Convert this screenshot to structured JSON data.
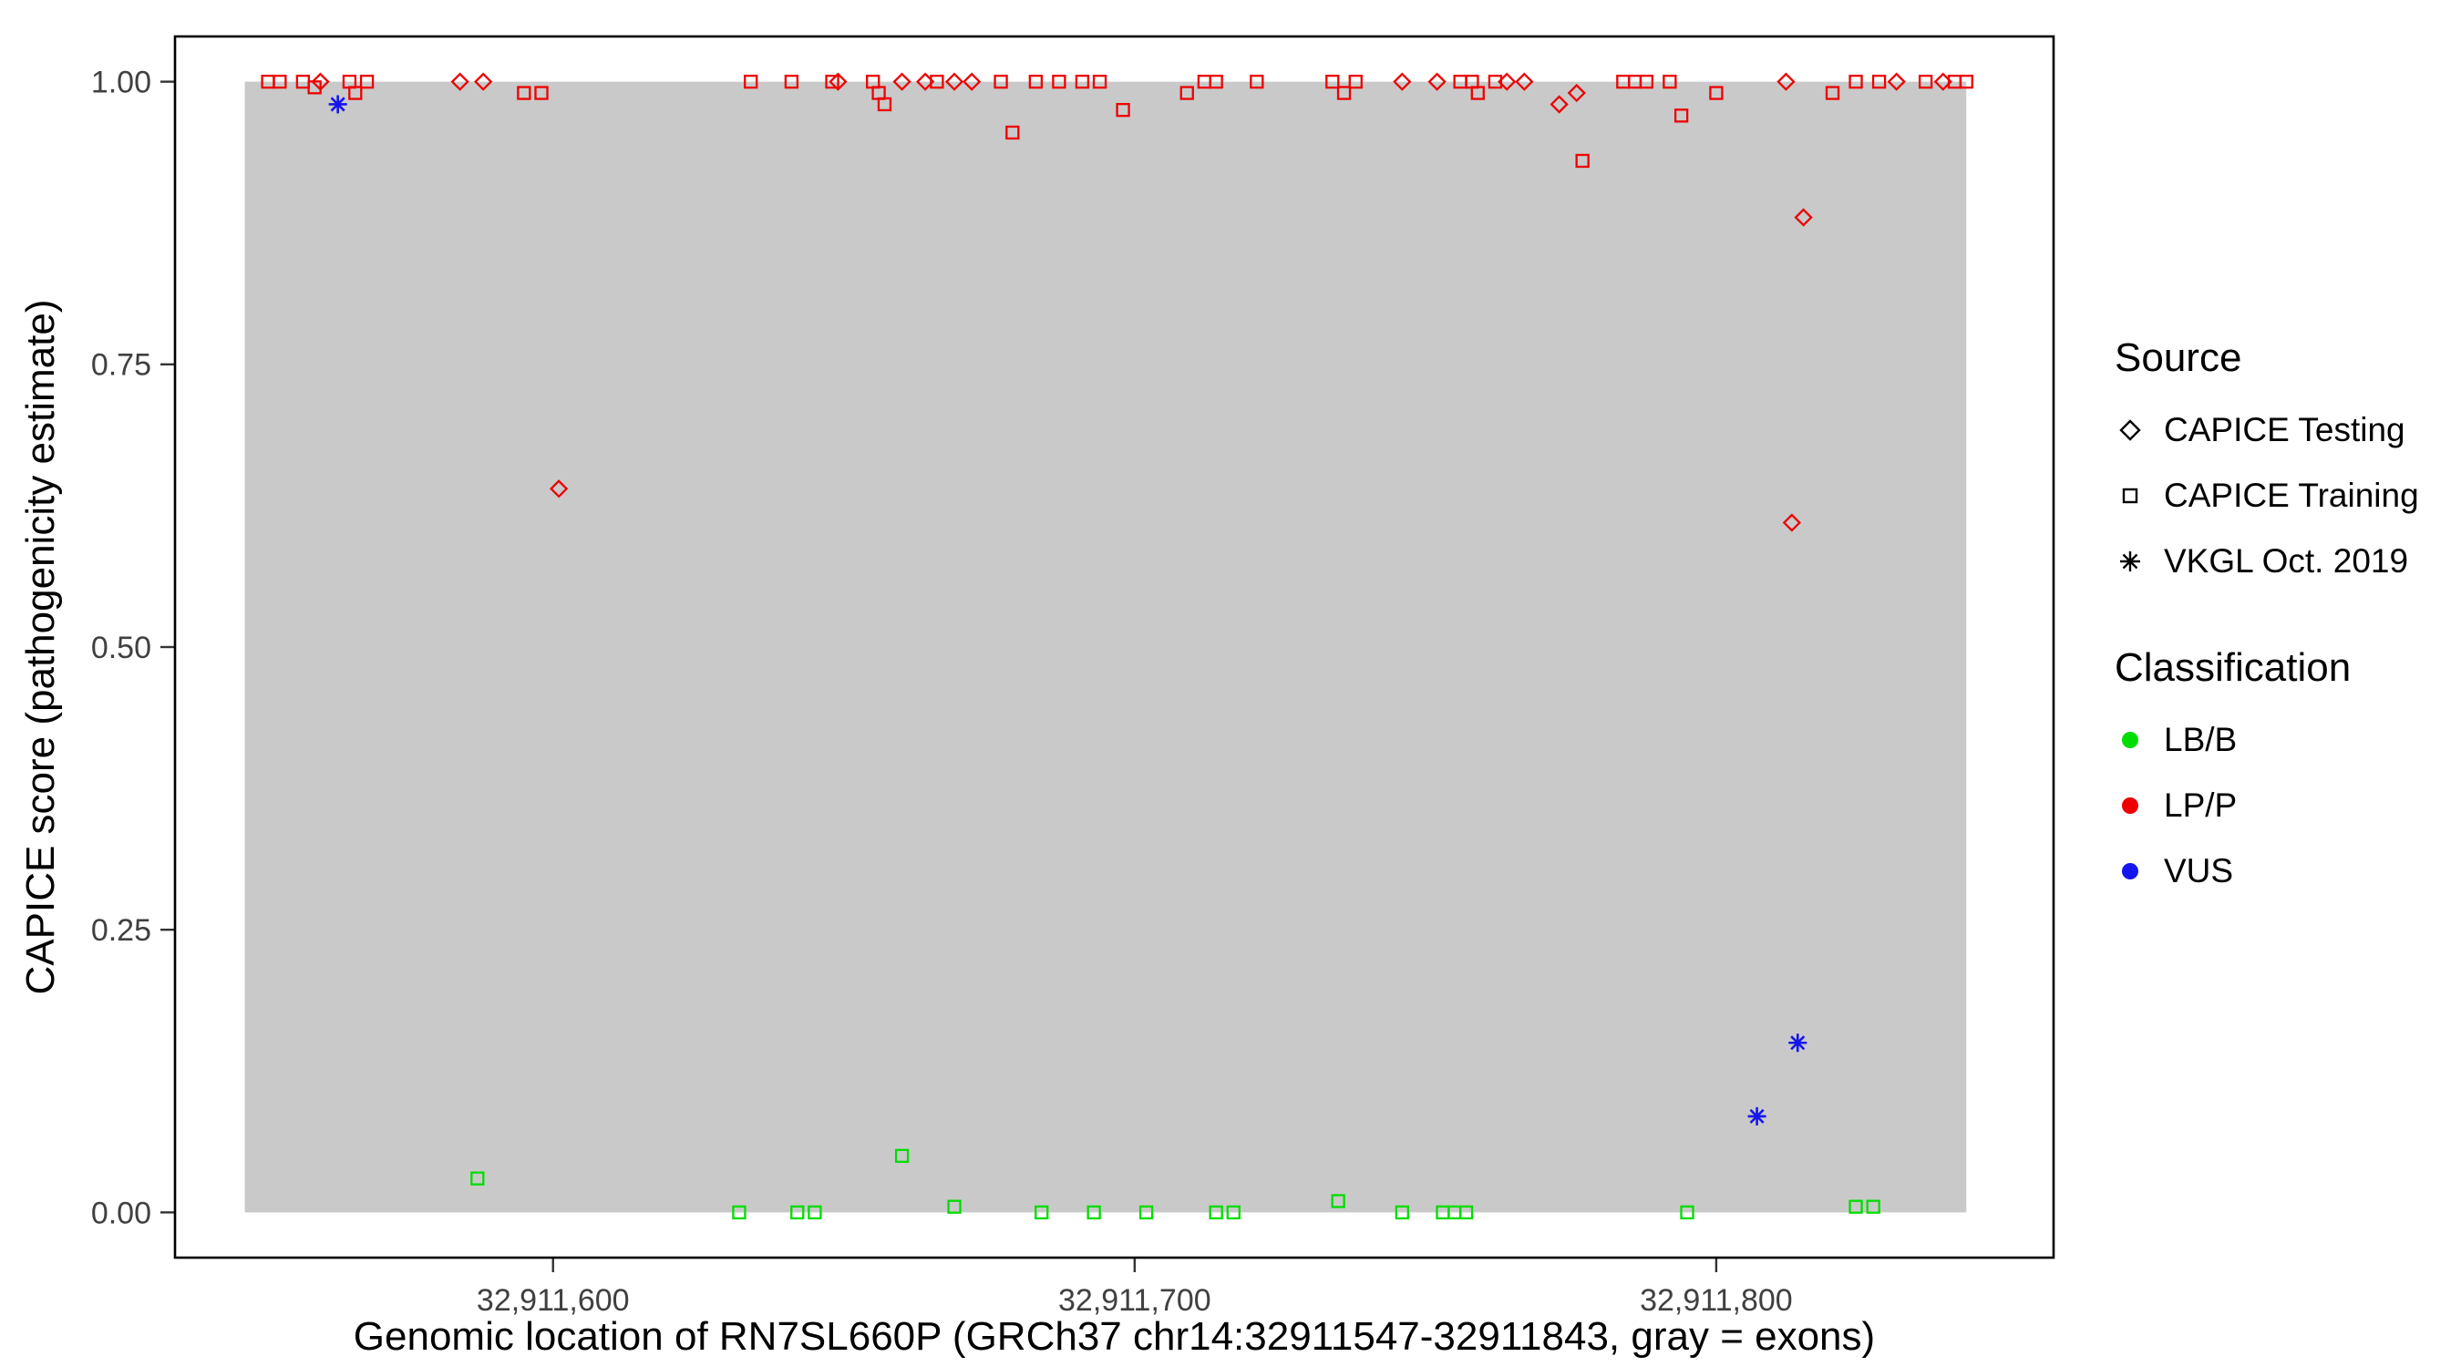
{
  "axes": {
    "x_title": "Genomic location of RN7SL660P (GRCh37 chr14:32911547-32911843, gray = exons)",
    "y_title": "CAPICE score (pathogenicity estimate)"
  },
  "legend": {
    "source": {
      "title": "Source",
      "items": [
        {
          "label": "CAPICE Testing",
          "marker": "diamond"
        },
        {
          "label": "CAPICE Training",
          "marker": "square"
        },
        {
          "label": "VKGL Oct. 2019",
          "marker": "asterisk"
        }
      ]
    },
    "classification": {
      "title": "Classification",
      "items": [
        {
          "label": "LB/B",
          "color": "#00dd00"
        },
        {
          "label": "LP/P",
          "color": "#ee0000"
        },
        {
          "label": "VUS",
          "color": "#1515ee"
        }
      ]
    }
  },
  "chart_data": {
    "type": "scatter",
    "title": "",
    "xlabel": "Genomic location of RN7SL660P (GRCh37 chr14:32911547-32911843, gray = exons)",
    "ylabel": "CAPICE score (pathogenicity estimate)",
    "xlim": [
      32911535,
      32911858
    ],
    "ylim": [
      -0.04,
      1.04
    ],
    "grid": false,
    "legend_position": "right",
    "x_ticks": [
      {
        "value": 32911600,
        "label": "32,911,600"
      },
      {
        "value": 32911700,
        "label": "32,911,700"
      },
      {
        "value": 32911800,
        "label": "32,911,800"
      }
    ],
    "y_ticks": [
      {
        "value": 0.0,
        "label": "0.00"
      },
      {
        "value": 0.25,
        "label": "0.25"
      },
      {
        "value": 0.5,
        "label": "0.50"
      },
      {
        "value": 0.75,
        "label": "0.75"
      },
      {
        "value": 1.0,
        "label": "1.00"
      }
    ],
    "exon_region": {
      "start": 32911547,
      "end": 32911843,
      "color": "#c9c9c9"
    },
    "marker_by_source": {
      "CAPICE Testing": "diamond",
      "CAPICE Training": "square",
      "VKGL Oct. 2019": "asterisk"
    },
    "color_by_class": {
      "LB/B": "#00dd00",
      "LP/P": "#ee0000",
      "VUS": "#1515ee"
    },
    "points": [
      [
        32911551,
        1.0,
        "CAPICE Training",
        "LP/P"
      ],
      [
        32911553,
        1.0,
        "CAPICE Training",
        "LP/P"
      ],
      [
        32911557,
        1.0,
        "CAPICE Training",
        "LP/P"
      ],
      [
        32911559,
        0.995,
        "CAPICE Training",
        "LP/P"
      ],
      [
        32911560,
        1.0,
        "CAPICE Testing",
        "LP/P"
      ],
      [
        32911563,
        0.98,
        "VKGL Oct. 2019",
        "VUS"
      ],
      [
        32911565,
        1.0,
        "CAPICE Training",
        "LP/P"
      ],
      [
        32911566,
        0.99,
        "CAPICE Training",
        "LP/P"
      ],
      [
        32911568,
        1.0,
        "CAPICE Training",
        "LP/P"
      ],
      [
        32911584,
        1.0,
        "CAPICE Testing",
        "LP/P"
      ],
      [
        32911588,
        1.0,
        "CAPICE Testing",
        "LP/P"
      ],
      [
        32911587,
        0.03,
        "CAPICE Training",
        "LB/B"
      ],
      [
        32911595,
        0.99,
        "CAPICE Training",
        "LP/P"
      ],
      [
        32911598,
        0.99,
        "CAPICE Training",
        "LP/P"
      ],
      [
        32911601,
        0.64,
        "CAPICE Testing",
        "LP/P"
      ],
      [
        32911632,
        0.0,
        "CAPICE Training",
        "LB/B"
      ],
      [
        32911634,
        1.0,
        "CAPICE Training",
        "LP/P"
      ],
      [
        32911641,
        1.0,
        "CAPICE Training",
        "LP/P"
      ],
      [
        32911642,
        0.0,
        "CAPICE Training",
        "LB/B"
      ],
      [
        32911645,
        0.0,
        "CAPICE Training",
        "LB/B"
      ],
      [
        32911648,
        1.0,
        "CAPICE Training",
        "LP/P"
      ],
      [
        32911649,
        1.0,
        "CAPICE Testing",
        "LP/P"
      ],
      [
        32911655,
        1.0,
        "CAPICE Training",
        "LP/P"
      ],
      [
        32911656,
        0.99,
        "CAPICE Training",
        "LP/P"
      ],
      [
        32911657,
        0.98,
        "CAPICE Training",
        "LP/P"
      ],
      [
        32911660,
        1.0,
        "CAPICE Testing",
        "LP/P"
      ],
      [
        32911660,
        0.05,
        "CAPICE Training",
        "LB/B"
      ],
      [
        32911664,
        1.0,
        "CAPICE Testing",
        "LP/P"
      ],
      [
        32911666,
        1.0,
        "CAPICE Training",
        "LP/P"
      ],
      [
        32911669,
        1.0,
        "CAPICE Testing",
        "LP/P"
      ],
      [
        32911669,
        0.005,
        "CAPICE Training",
        "LB/B"
      ],
      [
        32911672,
        1.0,
        "CAPICE Testing",
        "LP/P"
      ],
      [
        32911677,
        1.0,
        "CAPICE Training",
        "LP/P"
      ],
      [
        32911679,
        0.955,
        "CAPICE Training",
        "LP/P"
      ],
      [
        32911683,
        1.0,
        "CAPICE Training",
        "LP/P"
      ],
      [
        32911684,
        0.0,
        "CAPICE Training",
        "LB/B"
      ],
      [
        32911687,
        1.0,
        "CAPICE Training",
        "LP/P"
      ],
      [
        32911691,
        1.0,
        "CAPICE Training",
        "LP/P"
      ],
      [
        32911693,
        0.0,
        "CAPICE Training",
        "LB/B"
      ],
      [
        32911694,
        1.0,
        "CAPICE Training",
        "LP/P"
      ],
      [
        32911698,
        0.975,
        "CAPICE Training",
        "LP/P"
      ],
      [
        32911702,
        0.0,
        "CAPICE Training",
        "LB/B"
      ],
      [
        32911709,
        0.99,
        "CAPICE Training",
        "LP/P"
      ],
      [
        32911712,
        1.0,
        "CAPICE Training",
        "LP/P"
      ],
      [
        32911714,
        1.0,
        "CAPICE Training",
        "LP/P"
      ],
      [
        32911714,
        0.0,
        "CAPICE Training",
        "LB/B"
      ],
      [
        32911717,
        0.0,
        "CAPICE Training",
        "LB/B"
      ],
      [
        32911721,
        1.0,
        "CAPICE Training",
        "LP/P"
      ],
      [
        32911734,
        1.0,
        "CAPICE Training",
        "LP/P"
      ],
      [
        32911735,
        0.01,
        "CAPICE Training",
        "LB/B"
      ],
      [
        32911736,
        0.99,
        "CAPICE Training",
        "LP/P"
      ],
      [
        32911738,
        1.0,
        "CAPICE Training",
        "LP/P"
      ],
      [
        32911746,
        1.0,
        "CAPICE Testing",
        "LP/P"
      ],
      [
        32911746,
        0.0,
        "CAPICE Training",
        "LB/B"
      ],
      [
        32911752,
        1.0,
        "CAPICE Testing",
        "LP/P"
      ],
      [
        32911753,
        0.0,
        "CAPICE Training",
        "LB/B"
      ],
      [
        32911755,
        0.0,
        "CAPICE Training",
        "LB/B"
      ],
      [
        32911756,
        1.0,
        "CAPICE Training",
        "LP/P"
      ],
      [
        32911757,
        0.0,
        "CAPICE Training",
        "LB/B"
      ],
      [
        32911758,
        1.0,
        "CAPICE Training",
        "LP/P"
      ],
      [
        32911759,
        0.99,
        "CAPICE Training",
        "LP/P"
      ],
      [
        32911762,
        1.0,
        "CAPICE Training",
        "LP/P"
      ],
      [
        32911764,
        1.0,
        "CAPICE Testing",
        "LP/P"
      ],
      [
        32911767,
        1.0,
        "CAPICE Testing",
        "LP/P"
      ],
      [
        32911773,
        0.98,
        "CAPICE Testing",
        "LP/P"
      ],
      [
        32911776,
        0.99,
        "CAPICE Testing",
        "LP/P"
      ],
      [
        32911777,
        0.93,
        "CAPICE Training",
        "LP/P"
      ],
      [
        32911784,
        1.0,
        "CAPICE Training",
        "LP/P"
      ],
      [
        32911786,
        1.0,
        "CAPICE Training",
        "LP/P"
      ],
      [
        32911788,
        1.0,
        "CAPICE Training",
        "LP/P"
      ],
      [
        32911792,
        1.0,
        "CAPICE Training",
        "LP/P"
      ],
      [
        32911794,
        0.97,
        "CAPICE Training",
        "LP/P"
      ],
      [
        32911795,
        0.0,
        "CAPICE Training",
        "LB/B"
      ],
      [
        32911800,
        0.99,
        "CAPICE Training",
        "LP/P"
      ],
      [
        32911807,
        0.085,
        "VKGL Oct. 2019",
        "VUS"
      ],
      [
        32911812,
        1.0,
        "CAPICE Testing",
        "LP/P"
      ],
      [
        32911813,
        0.61,
        "CAPICE Testing",
        "LP/P"
      ],
      [
        32911814,
        0.15,
        "VKGL Oct. 2019",
        "VUS"
      ],
      [
        32911815,
        0.88,
        "CAPICE Testing",
        "LP/P"
      ],
      [
        32911820,
        0.99,
        "CAPICE Training",
        "LP/P"
      ],
      [
        32911824,
        1.0,
        "CAPICE Training",
        "LP/P"
      ],
      [
        32911824,
        0.005,
        "CAPICE Training",
        "LB/B"
      ],
      [
        32911827,
        0.005,
        "CAPICE Training",
        "LB/B"
      ],
      [
        32911828,
        1.0,
        "CAPICE Training",
        "LP/P"
      ],
      [
        32911831,
        1.0,
        "CAPICE Testing",
        "LP/P"
      ],
      [
        32911836,
        1.0,
        "CAPICE Training",
        "LP/P"
      ],
      [
        32911839,
        1.0,
        "CAPICE Testing",
        "LP/P"
      ],
      [
        32911841,
        1.0,
        "CAPICE Training",
        "LP/P"
      ],
      [
        32911843,
        1.0,
        "CAPICE Training",
        "LP/P"
      ]
    ]
  }
}
